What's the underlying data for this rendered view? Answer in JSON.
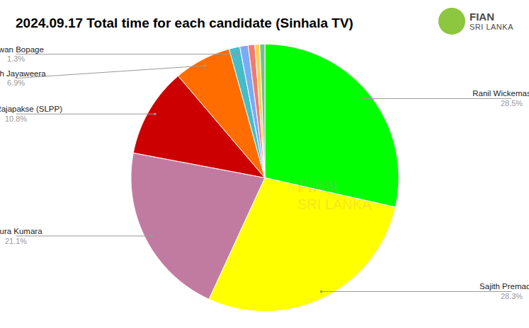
{
  "chart_data": {
    "type": "pie",
    "title": "2024.09.17 Total time for each candidate (Sinhala TV)",
    "categories": [
      "Ranil Wickemasinghe",
      "Sajith Premadasa",
      "Anura Kumara",
      "Namal Rajapakse (SLPP)",
      "Dilith Jayaweera",
      "Nuwan Bopage",
      null,
      null,
      null,
      null
    ],
    "values": [
      28.5,
      28.3,
      21.1,
      10.8,
      6.9,
      1.3,
      1.0,
      0.8,
      0.6,
      0.6
    ],
    "value_labels": [
      "28.5%",
      "28.3%",
      "21.1%",
      "10.8%",
      "6.9%",
      "1.3%",
      null,
      null,
      null,
      null
    ],
    "colors": [
      "#00ff00",
      "#ffff00",
      "#c27ba0",
      "#cc0000",
      "#ff6d01",
      "#46bdc6",
      "#7baaf7",
      "#f07b72",
      "#fcd04f",
      "#71c287"
    ],
    "data_labels": true,
    "logo": [
      "FIAN",
      "SRI LANKA"
    ]
  }
}
